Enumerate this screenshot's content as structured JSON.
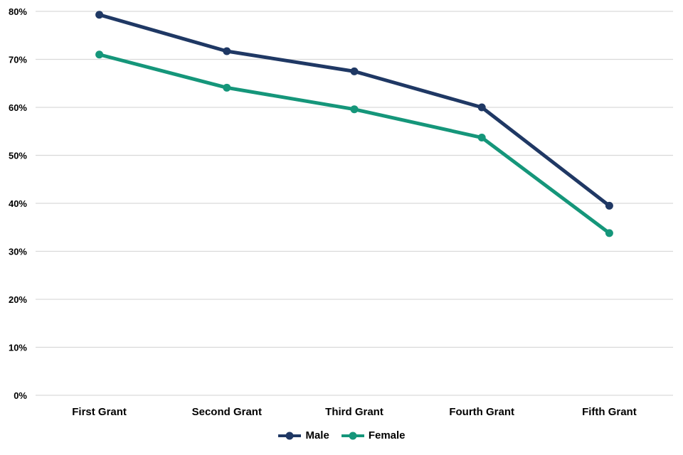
{
  "chart_data": {
    "type": "line",
    "title": "",
    "xlabel": "",
    "ylabel": "",
    "categories": [
      "First Grant",
      "Second Grant",
      "Third Grant",
      "Fourth Grant",
      "Fifth Grant"
    ],
    "series": [
      {
        "name": "Male",
        "color": "#1F3864",
        "values": [
          79.3,
          71.7,
          67.5,
          60.0,
          39.5
        ]
      },
      {
        "name": "Female",
        "color": "#15967A",
        "values": [
          71.0,
          64.1,
          59.6,
          53.7,
          33.8
        ]
      }
    ],
    "ylim": [
      0,
      80
    ],
    "y_tick_step": 10,
    "y_tick_labels": [
      "0%",
      "10%",
      "20%",
      "30%",
      "40%",
      "50%",
      "60%",
      "70%",
      "80%"
    ],
    "grid": true,
    "legend_position": "bottom",
    "marker": "circle"
  },
  "colors": {
    "background": "#FFFFFF",
    "gridline": "#D9D9D9",
    "axis_text": "#000000"
  }
}
